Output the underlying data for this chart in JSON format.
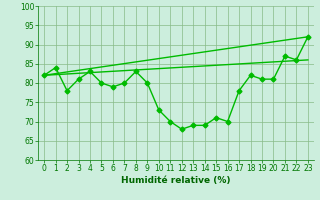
{
  "xlabel": "Humidité relative (%)",
  "background_color": "#cceedd",
  "grid_color": "#88bb88",
  "line_color": "#00bb00",
  "xlim": [
    -0.5,
    23.5
  ],
  "ylim": [
    60,
    100
  ],
  "yticks": [
    60,
    65,
    70,
    75,
    80,
    85,
    90,
    95,
    100
  ],
  "xticks": [
    0,
    1,
    2,
    3,
    4,
    5,
    6,
    7,
    8,
    9,
    10,
    11,
    12,
    13,
    14,
    15,
    16,
    17,
    18,
    19,
    20,
    21,
    22,
    23
  ],
  "series": [
    {
      "x": [
        0,
        1,
        2,
        3,
        4,
        5,
        6,
        7,
        8,
        9,
        10,
        11,
        12,
        13,
        14,
        15,
        16,
        17,
        18,
        19,
        20,
        21,
        22,
        23
      ],
      "y": [
        82,
        84,
        78,
        81,
        83,
        80,
        79,
        80,
        83,
        80,
        73,
        70,
        68,
        69,
        69,
        71,
        70,
        78,
        82,
        81,
        81,
        87,
        86,
        92
      ],
      "marker": "D",
      "markersize": 2.5,
      "linewidth": 1.0
    },
    {
      "x": [
        0,
        23
      ],
      "y": [
        82,
        86
      ],
      "marker": null,
      "markersize": 0,
      "linewidth": 1.0
    },
    {
      "x": [
        0,
        23
      ],
      "y": [
        82,
        92
      ],
      "marker": null,
      "markersize": 0,
      "linewidth": 1.0
    }
  ]
}
